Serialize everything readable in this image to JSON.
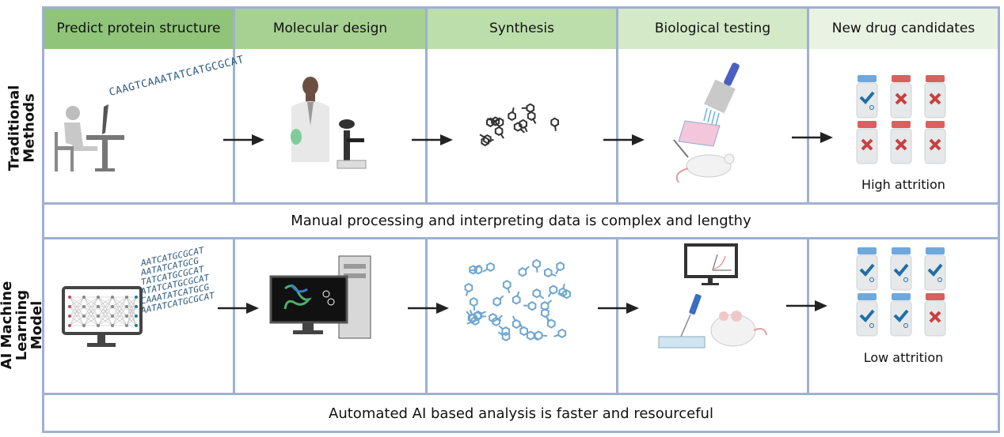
{
  "columns": [
    {
      "label": "Predict protein structure",
      "color": "#8fc47a"
    },
    {
      "label": "Molecular design",
      "color": "#a7d192"
    },
    {
      "label": "Synthesis",
      "color": "#bcdeab"
    },
    {
      "label": "Biological testing",
      "color": "#d3e9c8"
    },
    {
      "label": "New drug candidates",
      "color": "#e9f3e3"
    }
  ],
  "rows": [
    {
      "label": "Traditional Methods",
      "banner": "Manual processing and interpreting data is complex and lengthy",
      "outcome": "High attrition",
      "dna": [
        "CAAGTCAAATATCATGCGCAT"
      ],
      "molecule_color": "#333333",
      "vials": [
        "pass",
        "fail",
        "fail",
        "fail",
        "fail",
        "fail"
      ]
    },
    {
      "label": "AI Machine Learning Model",
      "banner": "Automated AI based analysis is faster and resourceful",
      "outcome": "Low attrition",
      "dna": [
        "AATCATGCGCAT",
        "AATATCATGCG",
        "TATCATGCGCAT",
        "ATATCATGCGCAT",
        "CAAATATCATGCG",
        "AATATCATGCGCAT"
      ],
      "molecule_color": "#6fa6cf",
      "vials": [
        "pass",
        "pass",
        "pass",
        "pass",
        "pass",
        "fail"
      ]
    }
  ],
  "colors": {
    "border": "#9fb0d2",
    "pass": "#1f6fa8",
    "fail": "#c94040",
    "pass_cap": "#6fa8dc",
    "fail_cap": "#d9605e"
  }
}
